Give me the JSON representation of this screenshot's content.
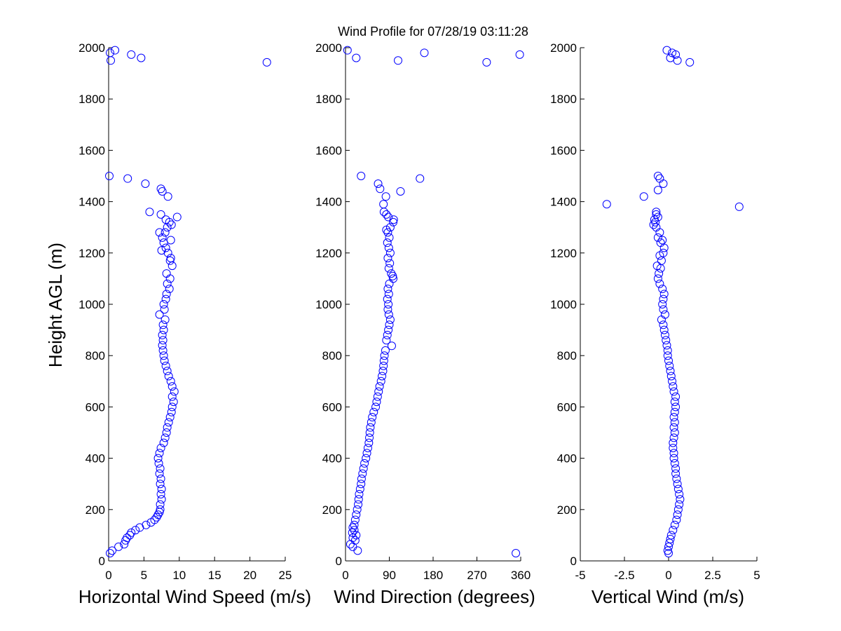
{
  "figure": {
    "title": "Wind Profile for  07/28/19 03:11:28",
    "ylabel": "Height AGL (m)"
  },
  "chart_data": [
    {
      "type": "scatter",
      "id": "speed",
      "xlabel": "Horizontal Wind Speed (m/s)",
      "ylabel": "Height AGL (m)",
      "xlim": [
        0,
        25
      ],
      "ylim": [
        0,
        2000
      ],
      "xticks": [
        0,
        5,
        10,
        15,
        20,
        25
      ],
      "xtick_labels": [
        "0",
        "5",
        "10",
        "15",
        "20",
        "25"
      ],
      "yticks": [
        0,
        200,
        400,
        600,
        800,
        1000,
        1200,
        1400,
        1600,
        1800,
        2000
      ],
      "ytick_labels": [
        "0",
        "200",
        "400",
        "600",
        "800",
        "1000",
        "1200",
        "1400",
        "1600",
        "1800",
        "2000"
      ],
      "points": [
        [
          0.2,
          30
        ],
        [
          0.5,
          40
        ],
        [
          1.4,
          55
        ],
        [
          2.2,
          65
        ],
        [
          2.4,
          80
        ],
        [
          2.6,
          90
        ],
        [
          3.0,
          100
        ],
        [
          3.2,
          110
        ],
        [
          3.8,
          120
        ],
        [
          4.4,
          130
        ],
        [
          5.3,
          140
        ],
        [
          6.0,
          150
        ],
        [
          6.5,
          160
        ],
        [
          6.8,
          170
        ],
        [
          7.0,
          180
        ],
        [
          7.2,
          190
        ],
        [
          7.3,
          200
        ],
        [
          7.3,
          220
        ],
        [
          7.5,
          240
        ],
        [
          7.4,
          260
        ],
        [
          7.5,
          280
        ],
        [
          7.3,
          300
        ],
        [
          7.4,
          320
        ],
        [
          7.2,
          340
        ],
        [
          7.3,
          360
        ],
        [
          7.1,
          380
        ],
        [
          7.0,
          400
        ],
        [
          7.2,
          420
        ],
        [
          7.4,
          440
        ],
        [
          7.8,
          460
        ],
        [
          8.0,
          480
        ],
        [
          8.2,
          500
        ],
        [
          8.3,
          520
        ],
        [
          8.5,
          540
        ],
        [
          8.7,
          560
        ],
        [
          8.9,
          580
        ],
        [
          9.0,
          600
        ],
        [
          9.2,
          620
        ],
        [
          9.0,
          640
        ],
        [
          9.3,
          660
        ],
        [
          9.0,
          680
        ],
        [
          8.8,
          700
        ],
        [
          8.5,
          720
        ],
        [
          8.3,
          740
        ],
        [
          8.1,
          760
        ],
        [
          7.9,
          780
        ],
        [
          7.8,
          800
        ],
        [
          7.7,
          820
        ],
        [
          7.6,
          840
        ],
        [
          7.7,
          860
        ],
        [
          7.6,
          880
        ],
        [
          7.8,
          900
        ],
        [
          7.7,
          920
        ],
        [
          8.0,
          940
        ],
        [
          7.2,
          960
        ],
        [
          7.9,
          980
        ],
        [
          7.8,
          1000
        ],
        [
          8.1,
          1020
        ],
        [
          8.2,
          1040
        ],
        [
          8.6,
          1060
        ],
        [
          8.3,
          1080
        ],
        [
          8.7,
          1100
        ],
        [
          8.2,
          1120
        ],
        [
          9.0,
          1150
        ],
        [
          8.7,
          1170
        ],
        [
          8.8,
          1180
        ],
        [
          8.4,
          1200
        ],
        [
          7.5,
          1210
        ],
        [
          8.1,
          1220
        ],
        [
          7.8,
          1240
        ],
        [
          8.8,
          1250
        ],
        [
          7.6,
          1260
        ],
        [
          8.0,
          1280
        ],
        [
          7.2,
          1280
        ],
        [
          8.3,
          1300
        ],
        [
          8.9,
          1310
        ],
        [
          8.6,
          1320
        ],
        [
          8.1,
          1330
        ],
        [
          9.7,
          1340
        ],
        [
          7.4,
          1350
        ],
        [
          5.8,
          1360
        ],
        [
          8.4,
          1420
        ],
        [
          7.6,
          1440
        ],
        [
          7.4,
          1450
        ],
        [
          5.2,
          1470
        ],
        [
          2.7,
          1490
        ],
        [
          0.1,
          1500
        ],
        [
          22.4,
          1943
        ],
        [
          4.6,
          1960
        ],
        [
          3.2,
          1973
        ],
        [
          0.3,
          1950
        ],
        [
          0.2,
          1980
        ],
        [
          0.9,
          1990
        ]
      ]
    },
    {
      "type": "scatter",
      "id": "direction",
      "xlabel": "Wind Direction (degrees)",
      "ylabel": "",
      "xlim": [
        0,
        360
      ],
      "ylim": [
        0,
        2000
      ],
      "xticks": [
        0,
        90,
        180,
        270,
        360
      ],
      "xtick_labels": [
        "0",
        "90",
        "180",
        "270",
        "360"
      ],
      "yticks": [
        0,
        200,
        400,
        600,
        800,
        1000,
        1200,
        1400,
        1600,
        1800,
        2000
      ],
      "ytick_labels": [
        "0",
        "200",
        "400",
        "600",
        "800",
        "1000",
        "1200",
        "1400",
        "1600",
        "1800",
        "2000"
      ],
      "points": [
        [
          350,
          30
        ],
        [
          25,
          40
        ],
        [
          15,
          55
        ],
        [
          10,
          65
        ],
        [
          20,
          80
        ],
        [
          15,
          90
        ],
        [
          22,
          100
        ],
        [
          14,
          110
        ],
        [
          18,
          120
        ],
        [
          15,
          130
        ],
        [
          18,
          140
        ],
        [
          20,
          160
        ],
        [
          22,
          180
        ],
        [
          24,
          200
        ],
        [
          26,
          220
        ],
        [
          27,
          240
        ],
        [
          28,
          260
        ],
        [
          30,
          280
        ],
        [
          32,
          300
        ],
        [
          33,
          320
        ],
        [
          35,
          340
        ],
        [
          37,
          360
        ],
        [
          39,
          380
        ],
        [
          42,
          400
        ],
        [
          44,
          420
        ],
        [
          46,
          440
        ],
        [
          48,
          460
        ],
        [
          49,
          480
        ],
        [
          50,
          500
        ],
        [
          51,
          520
        ],
        [
          53,
          540
        ],
        [
          55,
          560
        ],
        [
          58,
          580
        ],
        [
          62,
          600
        ],
        [
          64,
          620
        ],
        [
          66,
          640
        ],
        [
          68,
          660
        ],
        [
          70,
          680
        ],
        [
          73,
          700
        ],
        [
          75,
          720
        ],
        [
          77,
          740
        ],
        [
          78,
          760
        ],
        [
          79,
          780
        ],
        [
          80,
          800
        ],
        [
          82,
          820
        ],
        [
          95,
          838
        ],
        [
          84,
          860
        ],
        [
          86,
          880
        ],
        [
          88,
          900
        ],
        [
          90,
          920
        ],
        [
          92,
          940
        ],
        [
          89,
          960
        ],
        [
          87,
          980
        ],
        [
          88,
          1000
        ],
        [
          86,
          1020
        ],
        [
          89,
          1040
        ],
        [
          87,
          1060
        ],
        [
          90,
          1080
        ],
        [
          98,
          1100
        ],
        [
          97,
          1110
        ],
        [
          94,
          1120
        ],
        [
          89,
          1140
        ],
        [
          91,
          1160
        ],
        [
          87,
          1180
        ],
        [
          92,
          1200
        ],
        [
          89,
          1220
        ],
        [
          86,
          1240
        ],
        [
          90,
          1260
        ],
        [
          87,
          1280
        ],
        [
          84,
          1290
        ],
        [
          92,
          1300
        ],
        [
          98,
          1320
        ],
        [
          99,
          1330
        ],
        [
          88,
          1340
        ],
        [
          84,
          1350
        ],
        [
          79,
          1360
        ],
        [
          78,
          1390
        ],
        [
          83,
          1420
        ],
        [
          113,
          1440
        ],
        [
          71,
          1450
        ],
        [
          67,
          1470
        ],
        [
          153,
          1490
        ],
        [
          32,
          1500
        ],
        [
          290,
          1943
        ],
        [
          108,
          1950
        ],
        [
          22,
          1960
        ],
        [
          358,
          1973
        ],
        [
          162,
          1980
        ],
        [
          4,
          1990
        ]
      ]
    },
    {
      "type": "scatter",
      "id": "vertical",
      "xlabel": "Vertical Wind (m/s)",
      "ylabel": "",
      "xlim": [
        -5,
        5
      ],
      "ylim": [
        0,
        2000
      ],
      "xticks": [
        -5,
        -2.5,
        0,
        2.5,
        5
      ],
      "xtick_labels": [
        "-5",
        "-2.5",
        "0",
        "2.5",
        "5"
      ],
      "yticks": [
        0,
        200,
        400,
        600,
        800,
        1000,
        1200,
        1400,
        1600,
        1800,
        2000
      ],
      "ytick_labels": [
        "0",
        "200",
        "400",
        "600",
        "800",
        "1000",
        "1200",
        "1400",
        "1600",
        "1800",
        "2000"
      ],
      "points": [
        [
          0.0,
          30
        ],
        [
          -0.05,
          40
        ],
        [
          0.0,
          55
        ],
        [
          0.05,
          70
        ],
        [
          0.1,
          85
        ],
        [
          0.15,
          100
        ],
        [
          0.25,
          120
        ],
        [
          0.35,
          140
        ],
        [
          0.45,
          160
        ],
        [
          0.5,
          180
        ],
        [
          0.55,
          200
        ],
        [
          0.6,
          220
        ],
        [
          0.65,
          240
        ],
        [
          0.6,
          260
        ],
        [
          0.55,
          280
        ],
        [
          0.5,
          300
        ],
        [
          0.45,
          320
        ],
        [
          0.4,
          340
        ],
        [
          0.4,
          360
        ],
        [
          0.35,
          380
        ],
        [
          0.3,
          400
        ],
        [
          0.3,
          420
        ],
        [
          0.25,
          440
        ],
        [
          0.25,
          460
        ],
        [
          0.3,
          480
        ],
        [
          0.35,
          500
        ],
        [
          0.3,
          520
        ],
        [
          0.35,
          540
        ],
        [
          0.3,
          560
        ],
        [
          0.35,
          580
        ],
        [
          0.4,
          600
        ],
        [
          0.35,
          620
        ],
        [
          0.4,
          640
        ],
        [
          0.3,
          660
        ],
        [
          0.25,
          680
        ],
        [
          0.2,
          700
        ],
        [
          0.15,
          720
        ],
        [
          0.1,
          740
        ],
        [
          0.05,
          760
        ],
        [
          0.0,
          780
        ],
        [
          -0.05,
          800
        ],
        [
          -0.05,
          820
        ],
        [
          -0.1,
          840
        ],
        [
          -0.15,
          860
        ],
        [
          -0.2,
          880
        ],
        [
          -0.25,
          900
        ],
        [
          -0.3,
          920
        ],
        [
          -0.4,
          940
        ],
        [
          -0.2,
          960
        ],
        [
          -0.3,
          980
        ],
        [
          -0.35,
          1000
        ],
        [
          -0.3,
          1020
        ],
        [
          -0.25,
          1040
        ],
        [
          -0.35,
          1060
        ],
        [
          -0.5,
          1080
        ],
        [
          -0.6,
          1100
        ],
        [
          -0.55,
          1120
        ],
        [
          -0.45,
          1140
        ],
        [
          -0.65,
          1150
        ],
        [
          -0.4,
          1170
        ],
        [
          -0.5,
          1190
        ],
        [
          -0.3,
          1200
        ],
        [
          -0.25,
          1220
        ],
        [
          -0.45,
          1240
        ],
        [
          -0.35,
          1250
        ],
        [
          -0.6,
          1260
        ],
        [
          -0.5,
          1280
        ],
        [
          -0.7,
          1300
        ],
        [
          -0.85,
          1310
        ],
        [
          -0.75,
          1320
        ],
        [
          -0.8,
          1330
        ],
        [
          -0.6,
          1340
        ],
        [
          -0.7,
          1350
        ],
        [
          -0.7,
          1360
        ],
        [
          4.0,
          1380
        ],
        [
          -3.5,
          1390
        ],
        [
          -1.4,
          1420
        ],
        [
          -0.6,
          1445
        ],
        [
          -0.3,
          1470
        ],
        [
          -0.5,
          1490
        ],
        [
          -0.6,
          1500
        ],
        [
          1.2,
          1943
        ],
        [
          0.5,
          1950
        ],
        [
          0.1,
          1960
        ],
        [
          0.4,
          1973
        ],
        [
          0.2,
          1980
        ],
        [
          -0.1,
          1990
        ]
      ]
    }
  ]
}
